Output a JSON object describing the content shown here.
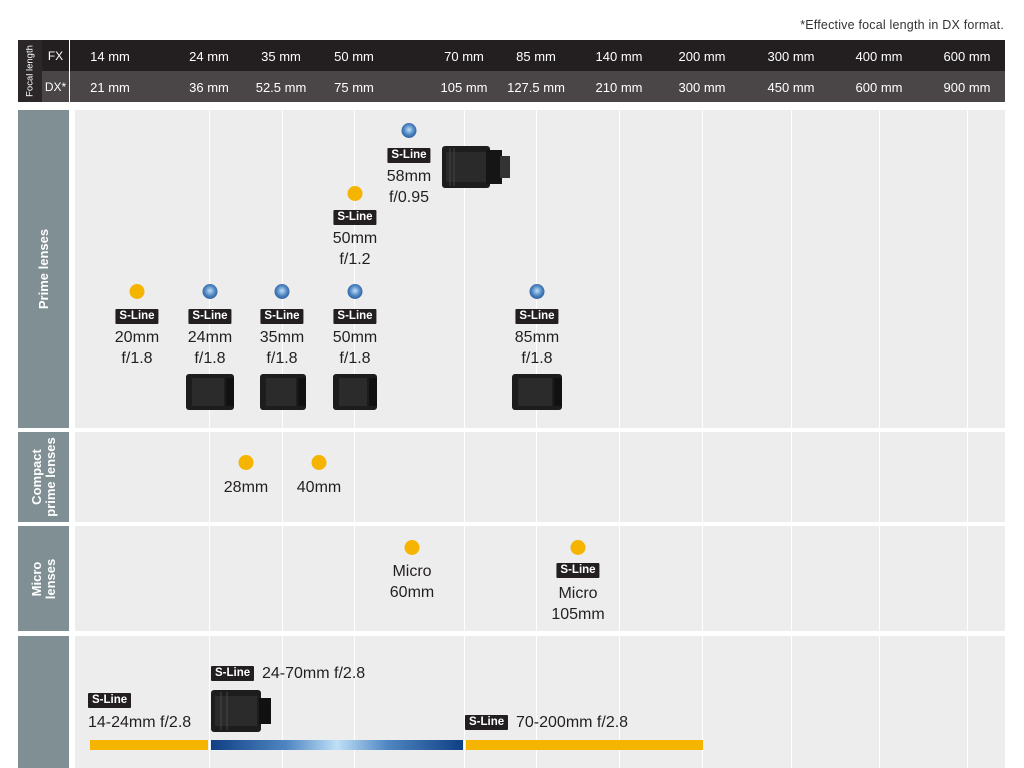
{
  "note": "*Effective focal length in DX format.",
  "header": {
    "focal_length_label": "Focal length",
    "fx_label": "FX",
    "dx_label": "DX*",
    "fx": [
      "14 mm",
      "24 mm",
      "35 mm",
      "50 mm",
      "70 mm",
      "85 mm",
      "140 mm",
      "200 mm",
      "300 mm",
      "400 mm",
      "600 mm"
    ],
    "dx": [
      "21 mm",
      "36 mm",
      "52.5 mm",
      "75 mm",
      "105 mm",
      "127.5 mm",
      "210 mm",
      "300 mm",
      "450 mm",
      "600 mm",
      "900 mm"
    ]
  },
  "sections": {
    "prime": "Prime lenses",
    "compact_1": "Compact",
    "compact_2": "prime lenses",
    "micro_1": "Micro",
    "micro_2": "lenses"
  },
  "sline": "S-Line",
  "prime": {
    "p58": {
      "l1": "58mm",
      "l2": "f/0.95"
    },
    "p50_12": {
      "l1": "50mm",
      "l2": "f/1.2"
    },
    "p20": {
      "l1": "20mm",
      "l2": "f/1.8"
    },
    "p24": {
      "l1": "24mm",
      "l2": "f/1.8"
    },
    "p35": {
      "l1": "35mm",
      "l2": "f/1.8"
    },
    "p50": {
      "l1": "50mm",
      "l2": "f/1.8"
    },
    "p85": {
      "l1": "85mm",
      "l2": "f/1.8"
    }
  },
  "compact": {
    "c28": "28mm",
    "c40": "40mm"
  },
  "micro": {
    "m60": {
      "l1": "Micro",
      "l2": "60mm"
    },
    "m105": {
      "l1": "Micro",
      "l2": "105mm"
    }
  },
  "zoom": {
    "z1424": "14-24mm f/2.8",
    "z2470": "24-70mm f/2.8",
    "z70200": "70-200mm f/2.8"
  },
  "colors": {
    "yellow": "#f5b400",
    "blue": "#0f3f84",
    "dark": "#231f20",
    "section": "#7f8f94"
  }
}
